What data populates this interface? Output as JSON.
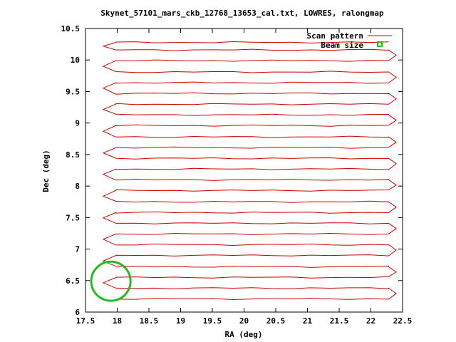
{
  "chart_data": {
    "type": "line",
    "title": "Skynet_57101_mars_ckb_12768_13653_cal.txt, LOWRES, ralongmap",
    "xlabel": "RA (deg)",
    "ylabel": "Dec (deg)",
    "xlim": [
      17.5,
      22.5
    ],
    "ylim": [
      6,
      10.5
    ],
    "x_ticks": [
      "17.5",
      "18",
      "18.5",
      "19",
      "19.5",
      "20",
      "20.5",
      "21",
      "21.5",
      "22",
      "22.5"
    ],
    "y_ticks": [
      "6",
      "6.5",
      "7",
      "7.5",
      "8",
      "8.5",
      "9",
      "9.5",
      "10",
      "10.5"
    ],
    "grid": false,
    "legend_position": "top-right",
    "series": [
      {
        "name": "Scan pattern",
        "color": "#cc0000",
        "scan_x_start": 17.98,
        "scan_x_end": 22.28,
        "scan_rows_dec": [
          6.21,
          6.38,
          6.55,
          6.72,
          6.9,
          7.07,
          7.24,
          7.41,
          7.58,
          7.75,
          7.93,
          8.1,
          8.27,
          8.44,
          8.61,
          8.78,
          8.96,
          9.13,
          9.3,
          9.47,
          9.64,
          9.81,
          9.99,
          10.16,
          10.28
        ]
      },
      {
        "name": "Beam size",
        "color": "#22bb22",
        "center": [
          17.9,
          6.49
        ],
        "radius_deg": 0.31
      }
    ]
  }
}
